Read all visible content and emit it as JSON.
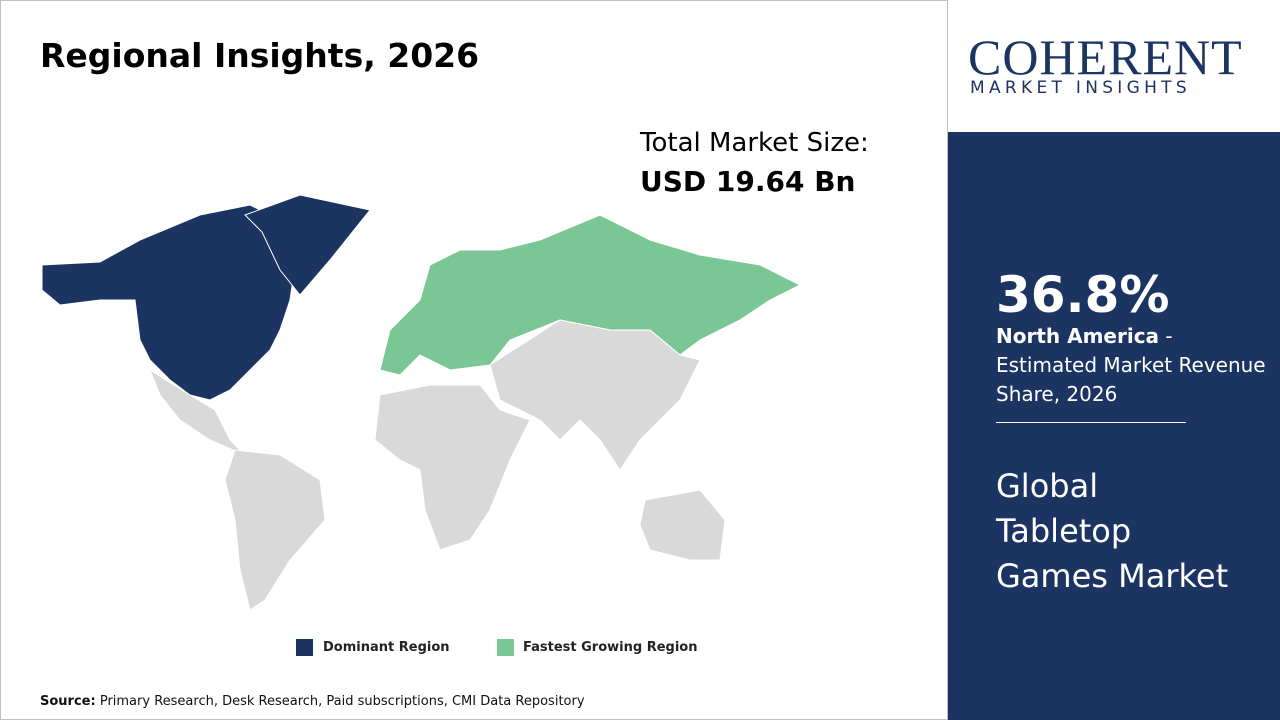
{
  "header": {
    "title": "Regional Insights, 2026"
  },
  "market_size": {
    "label": "Total Market Size:",
    "value": "USD 19.64 Bn"
  },
  "legend": {
    "dominant": "Dominant Region",
    "fastest": "Fastest Growing Region"
  },
  "source": {
    "label": "Source:",
    "text": "Primary Research, Desk Research, Paid subscriptions, CMI Data Repository"
  },
  "logo": {
    "name": "COHERENT",
    "tagline": "MARKET INSIGHTS"
  },
  "sidebar": {
    "share": "36.8%",
    "region": "North America",
    "description": "- Estimated Market Revenue Share, 2026",
    "market": "Global Tabletop Games Market"
  }
}
